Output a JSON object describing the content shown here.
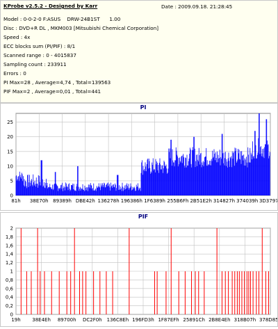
{
  "header": {
    "app_title": "KProbe v2.5.2 - Designed by Karr",
    "date": "Date : 2009.09.18. 21:28:45",
    "model": "Model : 0-0-2-0 F:ASUS    DRW-24B1ST      1.00",
    "disc": "Disc : DVD+R DL , MKM003 [Mitsubishi Chemical Corporation]",
    "speed": "Speed : 4x",
    "ecc": "ECC blocks sum (PI/PIF) : 8/1",
    "scanned": "Scanned range : 0 - 4015837",
    "sampling": "Sampling count : 233911",
    "errors": "Errors : 0",
    "pi_stats": "PI Max=28 , Average=4,74 , Total=139563",
    "pif_stats": "PIF Max=2 , Average=0,01 , Total=441"
  },
  "colors": {
    "pi": "#0000ff",
    "pif": "#ff0000",
    "title": "#000080",
    "grid": "#c0c0c0"
  },
  "chart_data": [
    {
      "type": "bar",
      "title": "PI",
      "ylim": [
        0,
        28
      ],
      "yticks": [
        0,
        5,
        10,
        15,
        20,
        25
      ],
      "xtick_labels": [
        "81h",
        "38E70h",
        "89389h",
        "DBE42h",
        "136278h",
        "196386h",
        "1F6389h",
        "255B6Fh",
        "2B51E2h",
        "314827h",
        "374039h",
        "3D3797h"
      ],
      "grid": true,
      "segments": [
        {
          "from": 0.0,
          "to": 0.03,
          "base": 6,
          "noise": 4
        },
        {
          "from": 0.03,
          "to": 0.12,
          "base": 4,
          "noise": 5
        },
        {
          "from": 0.12,
          "to": 0.49,
          "base": 2.5,
          "noise": 3
        },
        {
          "from": 0.49,
          "to": 0.6,
          "base": 9,
          "noise": 6
        },
        {
          "from": 0.6,
          "to": 0.93,
          "base": 12,
          "noise": 7
        },
        {
          "from": 0.93,
          "to": 1.0,
          "base": 15,
          "noise": 7
        }
      ],
      "spikes": [
        {
          "x": 0.1,
          "value": 12
        },
        {
          "x": 0.155,
          "value": 8
        },
        {
          "x": 0.243,
          "value": 10
        },
        {
          "x": 0.4,
          "value": 7
        },
        {
          "x": 0.61,
          "value": 19
        },
        {
          "x": 0.7,
          "value": 20
        },
        {
          "x": 0.81,
          "value": 21
        },
        {
          "x": 0.94,
          "value": 22
        },
        {
          "x": 0.956,
          "value": 28
        },
        {
          "x": 0.985,
          "value": 26
        }
      ]
    },
    {
      "type": "bar",
      "title": "PIF",
      "ylim": [
        0,
        2
      ],
      "yticks": [
        0,
        0.2,
        0.4,
        0.6,
        0.8,
        1,
        1.2,
        1.4,
        1.6,
        1.8,
        2
      ],
      "ytick_labels": [
        "0",
        "0,2",
        "0,4",
        "0,6",
        "0,8",
        "1",
        "1,2",
        "1,4",
        "1,6",
        "1,8",
        "2"
      ],
      "xtick_labels": [
        "19h",
        "38E4Eh",
        "89700h",
        "DC2F0h",
        "136C8Eh",
        "196FD3h",
        "1F87EFh",
        "25891Ch",
        "2B8E4Eh",
        "318B07h",
        "378D85h"
      ],
      "grid": true,
      "bars": [
        {
          "x": 0.02,
          "value": 2
        },
        {
          "x": 0.042,
          "value": 1
        },
        {
          "x": 0.06,
          "value": 1
        },
        {
          "x": 0.085,
          "value": 2
        },
        {
          "x": 0.095,
          "value": 1
        },
        {
          "x": 0.112,
          "value": 1
        },
        {
          "x": 0.14,
          "value": 1
        },
        {
          "x": 0.17,
          "value": 1
        },
        {
          "x": 0.2,
          "value": 1
        },
        {
          "x": 0.215,
          "value": 1
        },
        {
          "x": 0.23,
          "value": 2
        },
        {
          "x": 0.25,
          "value": 1
        },
        {
          "x": 0.262,
          "value": 1
        },
        {
          "x": 0.275,
          "value": 1
        },
        {
          "x": 0.305,
          "value": 1
        },
        {
          "x": 0.33,
          "value": 1
        },
        {
          "x": 0.355,
          "value": 1
        },
        {
          "x": 0.38,
          "value": 1
        },
        {
          "x": 0.445,
          "value": 2
        },
        {
          "x": 0.545,
          "value": 1
        },
        {
          "x": 0.555,
          "value": 1
        },
        {
          "x": 0.59,
          "value": 1
        },
        {
          "x": 0.61,
          "value": 2
        },
        {
          "x": 0.64,
          "value": 1
        },
        {
          "x": 0.665,
          "value": 1
        },
        {
          "x": 0.69,
          "value": 1
        },
        {
          "x": 0.705,
          "value": 1
        },
        {
          "x": 0.718,
          "value": 1
        },
        {
          "x": 0.74,
          "value": 1
        },
        {
          "x": 0.79,
          "value": 2
        },
        {
          "x": 0.81,
          "value": 1
        },
        {
          "x": 0.823,
          "value": 1
        },
        {
          "x": 0.835,
          "value": 1
        },
        {
          "x": 0.85,
          "value": 1
        },
        {
          "x": 0.86,
          "value": 1
        },
        {
          "x": 0.87,
          "value": 1
        },
        {
          "x": 0.878,
          "value": 1
        },
        {
          "x": 0.888,
          "value": 1
        },
        {
          "x": 0.898,
          "value": 1
        },
        {
          "x": 0.908,
          "value": 1
        },
        {
          "x": 0.915,
          "value": 1
        },
        {
          "x": 0.922,
          "value": 1
        },
        {
          "x": 0.932,
          "value": 1
        },
        {
          "x": 0.945,
          "value": 1
        },
        {
          "x": 0.955,
          "value": 1
        },
        {
          "x": 0.968,
          "value": 2
        },
        {
          "x": 0.982,
          "value": 1
        },
        {
          "x": 0.993,
          "value": 1
        }
      ]
    }
  ]
}
